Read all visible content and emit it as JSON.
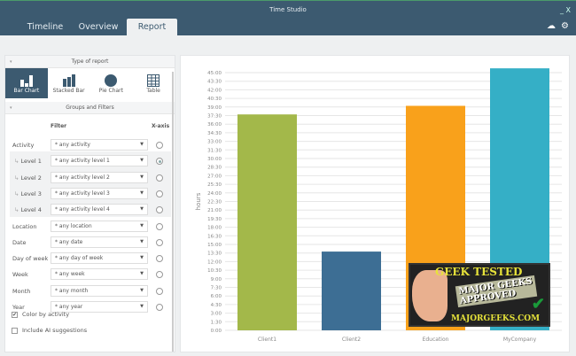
{
  "window": {
    "title": "Time Studio",
    "controls": "_ X"
  },
  "tabs": [
    {
      "label": "Timeline"
    },
    {
      "label": "Overview"
    },
    {
      "label": "Report",
      "active": true
    }
  ],
  "top_icons": [
    "cloud-icon",
    "gear-icon"
  ],
  "type_of_report": {
    "heading": "Type of report",
    "options": [
      {
        "label": "Bar Chart",
        "icon": "bar-chart-icon",
        "active": true
      },
      {
        "label": "Stacked Bar",
        "icon": "stacked-bar-icon"
      },
      {
        "label": "Pie Chart",
        "icon": "pie-chart-icon"
      },
      {
        "label": "Table",
        "icon": "table-icon"
      }
    ]
  },
  "groups": {
    "heading": "Groups and Filters",
    "filter_header": "Filter",
    "xaxis_header": "X-axis",
    "rows": [
      {
        "label": "Activity",
        "value": "* any activity",
        "xaxis": false
      },
      {
        "label": "Level 1",
        "value": "* any activity level 1",
        "xaxis": true,
        "sub": true
      },
      {
        "label": "Level 2",
        "value": "* any activity level 2",
        "xaxis": false,
        "sub": true
      },
      {
        "label": "Level 3",
        "value": "* any activity level 3",
        "xaxis": false,
        "sub": true
      },
      {
        "label": "Level 4",
        "value": "* any activity level 4",
        "xaxis": false,
        "sub": true
      },
      {
        "label": "Location",
        "value": "* any location",
        "xaxis": false
      },
      {
        "label": "Date",
        "value": "* any date",
        "xaxis": false
      },
      {
        "label": "Day of week",
        "value": "* any day of week",
        "xaxis": false
      },
      {
        "label": "Week",
        "value": "* any week",
        "xaxis": false
      },
      {
        "label": "Month",
        "value": "* any month",
        "xaxis": false
      },
      {
        "label": "Year",
        "value": "* any year",
        "xaxis": false
      }
    ],
    "color_by_activity": {
      "label": "Color by activity",
      "checked": true
    },
    "include_ai": {
      "label": "Include AI suggestions",
      "checked": false
    }
  },
  "chart_data": {
    "type": "bar",
    "ylabel": "hours",
    "xlabel": "",
    "ylim": [
      0,
      45
    ],
    "grid": true,
    "categories": [
      "Client1",
      "Client2",
      "Education",
      "MyCompany"
    ],
    "values": [
      37.7,
      13.75,
      39.2,
      45.75
    ],
    "colors": [
      "#a3b84a",
      "#3d6e94",
      "#f9a11b",
      "#35afc6"
    ],
    "y_ticks": [
      "0:00",
      "1:30",
      "3:00",
      "4:30",
      "6:00",
      "7:30",
      "9:00",
      "10:30",
      "12:00",
      "13:30",
      "15:00",
      "16:30",
      "18:00",
      "19:30",
      "21:00",
      "22:30",
      "24:00",
      "25:30",
      "27:00",
      "28:30",
      "30:00",
      "31:30",
      "33:00",
      "34:30",
      "36:00",
      "37:30",
      "39:00",
      "40:30",
      "42:00",
      "43:30",
      "45:00"
    ]
  },
  "watermark": {
    "line1": "GEEK TESTED",
    "line2": "MAJOR GEEKS APPROVED",
    "line3": "MAJORGEEKS.COM"
  }
}
